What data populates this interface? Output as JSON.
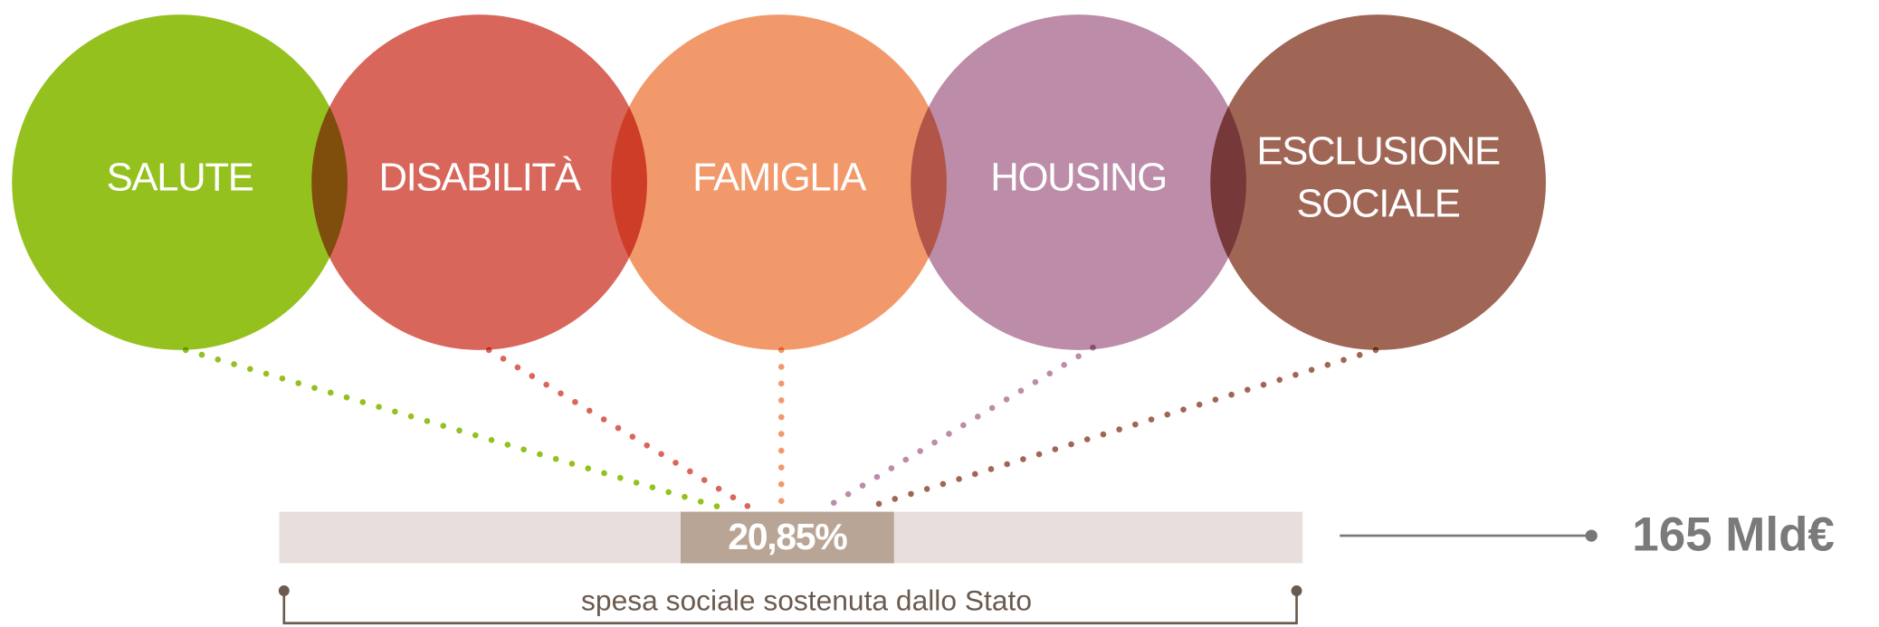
{
  "nodes": [
    {
      "lines": [
        "SALUTE"
      ],
      "color": "#95c11f"
    },
    {
      "lines": [
        "DISABILITÀ"
      ],
      "color": "#d9665b"
    },
    {
      "lines": [
        "FAMIGLIA"
      ],
      "color": "#f2996b"
    },
    {
      "lines": [
        "HOUSING"
      ],
      "color": "#bc8ca8"
    },
    {
      "lines": [
        "ESCLUSIONE",
        "SOCIALE"
      ],
      "color": "#a06655"
    }
  ],
  "bar": {
    "share": {
      "value": 20.85,
      "label": "20,85%"
    },
    "caption": "spesa sociale sostenuta dallo Stato"
  },
  "total": "165 Mld€"
}
